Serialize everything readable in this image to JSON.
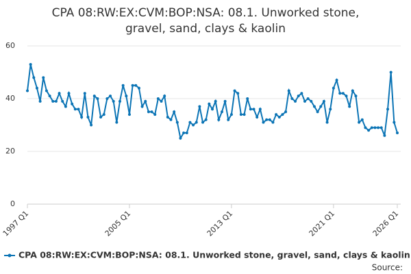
{
  "chart_data": {
    "type": "line",
    "title": [
      "CPA 08:RW:EX:CVM:BOP:NSA: 08.1. Unworked stone,",
      "gravel, sand, clays & kaolin"
    ],
    "categories": [
      "1997 Q1",
      null,
      null,
      null,
      null,
      null,
      null,
      null,
      null,
      null,
      null,
      null,
      null,
      null,
      null,
      null,
      null,
      null,
      null,
      null,
      null,
      null,
      null,
      null,
      null,
      null,
      null,
      null,
      null,
      null,
      null,
      null,
      "2005 Q1",
      null,
      null,
      null,
      null,
      null,
      null,
      null,
      null,
      null,
      null,
      null,
      null,
      null,
      null,
      null,
      null,
      null,
      null,
      null,
      null,
      null,
      null,
      null,
      null,
      null,
      null,
      null,
      null,
      null,
      null,
      null,
      "2013 Q1",
      null,
      null,
      null,
      null,
      null,
      null,
      null,
      null,
      null,
      null,
      null,
      null,
      null,
      null,
      null,
      null,
      null,
      null,
      null,
      null,
      null,
      null,
      null,
      null,
      null,
      null,
      null,
      null,
      null,
      null,
      null,
      "2021 Q1",
      null,
      null,
      null,
      null,
      null,
      null,
      null,
      null,
      null,
      null,
      null,
      null,
      null,
      null,
      null,
      null,
      null,
      null,
      null,
      "2026 Q1"
    ],
    "series": [
      {
        "name": "CPA 08:RW:EX:CVM:BOP:NSA: 08.1. Unworked stone, gravel, sand, clays & kaolin",
        "color": "#0b74b5",
        "values": [
          43,
          53,
          48,
          44,
          39,
          48,
          43,
          41,
          39,
          39,
          42,
          39,
          37,
          42,
          38,
          36,
          36,
          33,
          42,
          33,
          30,
          41,
          40,
          33,
          34,
          40,
          41,
          39,
          31,
          39,
          45,
          41,
          34,
          45,
          45,
          44,
          37,
          39,
          35,
          35,
          34,
          40,
          39,
          41,
          33,
          32,
          35,
          31,
          25,
          27,
          27,
          31,
          30,
          31,
          37,
          31,
          32,
          38,
          36,
          39,
          32,
          35,
          39,
          32,
          34,
          43,
          42,
          34,
          34,
          40,
          36,
          36,
          33,
          36,
          31,
          32,
          32,
          31,
          34,
          33,
          34,
          35,
          43,
          40,
          39,
          41,
          42,
          39,
          40,
          39,
          37,
          35,
          37,
          39,
          31,
          36,
          44,
          47,
          42,
          42,
          41,
          37,
          43,
          41,
          31,
          32,
          29,
          28,
          29,
          29,
          29,
          29,
          26,
          36,
          50,
          31,
          27
        ]
      }
    ],
    "ylim": [
      0,
      60
    ],
    "yticks": [
      0,
      20,
      40,
      60
    ],
    "grid": true,
    "legend": "bottom",
    "source_label": "Source:"
  }
}
